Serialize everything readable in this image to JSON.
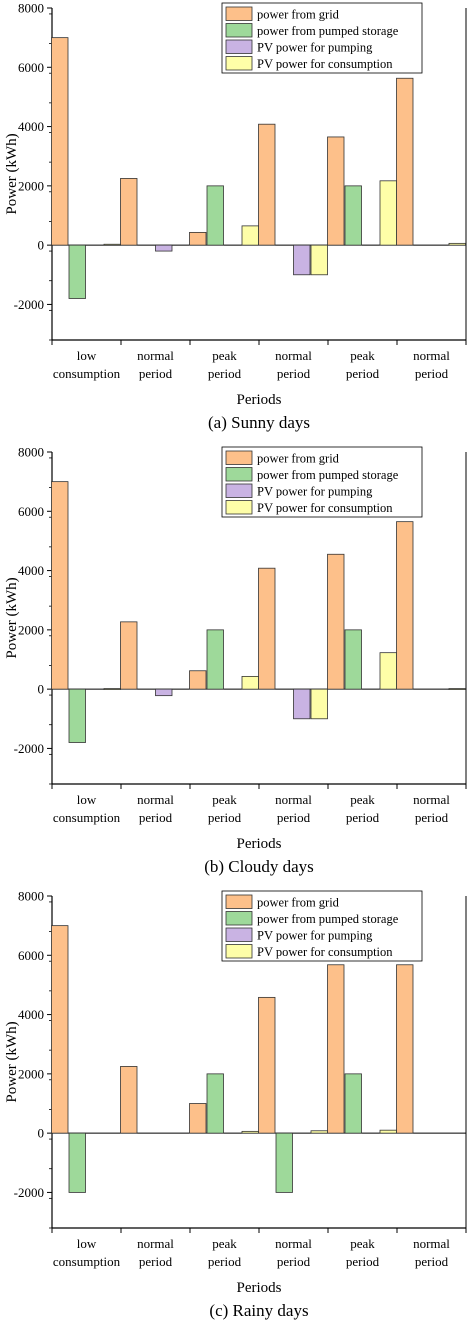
{
  "colors": {
    "power_from_grid": "#FDC08A",
    "power_from_pumped_storage": "#9ED99A",
    "pv_power_for_pumping": "#C9B3E3",
    "pv_power_for_consumption": "#FEFEA8",
    "stroke": "#333333"
  },
  "chart_data": [
    {
      "type": "bar",
      "caption": "(a) Sunny days",
      "xlabel": "Periods",
      "ylabel": "Power (kWh)",
      "ylim": [
        -3200,
        8000
      ],
      "yticks": [
        -2000,
        0,
        2000,
        4000,
        6000,
        8000
      ],
      "legend_position": "top-right",
      "categories": [
        {
          "line1": "low",
          "line2": "consumption"
        },
        {
          "line1": "normal",
          "line2": "period"
        },
        {
          "line1": "peak",
          "line2": "period"
        },
        {
          "line1": "normal",
          "line2": "period"
        },
        {
          "line1": "peak",
          "line2": "period"
        },
        {
          "line1": "normal",
          "line2": "period"
        }
      ],
      "series": [
        {
          "name": "power from grid",
          "color_key": "power_from_grid",
          "values": [
            7000,
            2250,
            430,
            4080,
            3650,
            5630
          ]
        },
        {
          "name": "power from pumped storage",
          "color_key": "power_from_pumped_storage",
          "values": [
            -1800,
            0,
            2000,
            0,
            2000,
            0
          ]
        },
        {
          "name": "PV power for pumping",
          "color_key": "pv_power_for_pumping",
          "values": [
            0,
            -200,
            0,
            -1000,
            0,
            0
          ]
        },
        {
          "name": "PV power for consumption",
          "color_key": "pv_power_for_consumption",
          "values": [
            30,
            0,
            650,
            -1000,
            2170,
            60
          ]
        }
      ]
    },
    {
      "type": "bar",
      "caption": "(b) Cloudy days",
      "xlabel": "Periods",
      "ylabel": "Power (kWh)",
      "ylim": [
        -3200,
        8000
      ],
      "yticks": [
        -2000,
        0,
        2000,
        4000,
        6000,
        8000
      ],
      "legend_position": "top-right",
      "categories": [
        {
          "line1": "low",
          "line2": "consumption"
        },
        {
          "line1": "normal",
          "line2": "period"
        },
        {
          "line1": "peak",
          "line2": "period"
        },
        {
          "line1": "normal",
          "line2": "period"
        },
        {
          "line1": "peak",
          "line2": "period"
        },
        {
          "line1": "normal",
          "line2": "period"
        }
      ],
      "series": [
        {
          "name": "power from grid",
          "color_key": "power_from_grid",
          "values": [
            7000,
            2270,
            620,
            4080,
            4550,
            5650
          ]
        },
        {
          "name": "power from pumped storage",
          "color_key": "power_from_pumped_storage",
          "values": [
            -1800,
            0,
            2000,
            0,
            2000,
            0
          ]
        },
        {
          "name": "PV power for pumping",
          "color_key": "pv_power_for_pumping",
          "values": [
            0,
            -220,
            0,
            -1000,
            0,
            0
          ]
        },
        {
          "name": "PV power for consumption",
          "color_key": "pv_power_for_consumption",
          "values": [
            20,
            0,
            430,
            -1000,
            1230,
            20
          ]
        }
      ]
    },
    {
      "type": "bar",
      "caption": "(c) Rainy days",
      "xlabel": "Periods",
      "ylabel": "Power (kWh)",
      "ylim": [
        -3200,
        8000
      ],
      "yticks": [
        -2000,
        0,
        2000,
        4000,
        6000,
        8000
      ],
      "legend_position": "top-right",
      "categories": [
        {
          "line1": "low",
          "line2": "consumption"
        },
        {
          "line1": "normal",
          "line2": "period"
        },
        {
          "line1": "peak",
          "line2": "period"
        },
        {
          "line1": "normal",
          "line2": "period"
        },
        {
          "line1": "peak",
          "line2": "period"
        },
        {
          "line1": "normal",
          "line2": "period"
        }
      ],
      "series": [
        {
          "name": "power from grid",
          "color_key": "power_from_grid",
          "values": [
            7000,
            2250,
            1000,
            4580,
            5680,
            5680
          ]
        },
        {
          "name": "power from pumped storage",
          "color_key": "power_from_pumped_storage",
          "values": [
            -2000,
            0,
            2000,
            -2000,
            2000,
            0
          ]
        },
        {
          "name": "PV power for pumping",
          "color_key": "pv_power_for_pumping",
          "values": [
            0,
            0,
            0,
            0,
            0,
            0
          ]
        },
        {
          "name": "PV power for consumption",
          "color_key": "pv_power_for_consumption",
          "values": [
            0,
            0,
            60,
            80,
            100,
            0
          ]
        }
      ]
    }
  ]
}
